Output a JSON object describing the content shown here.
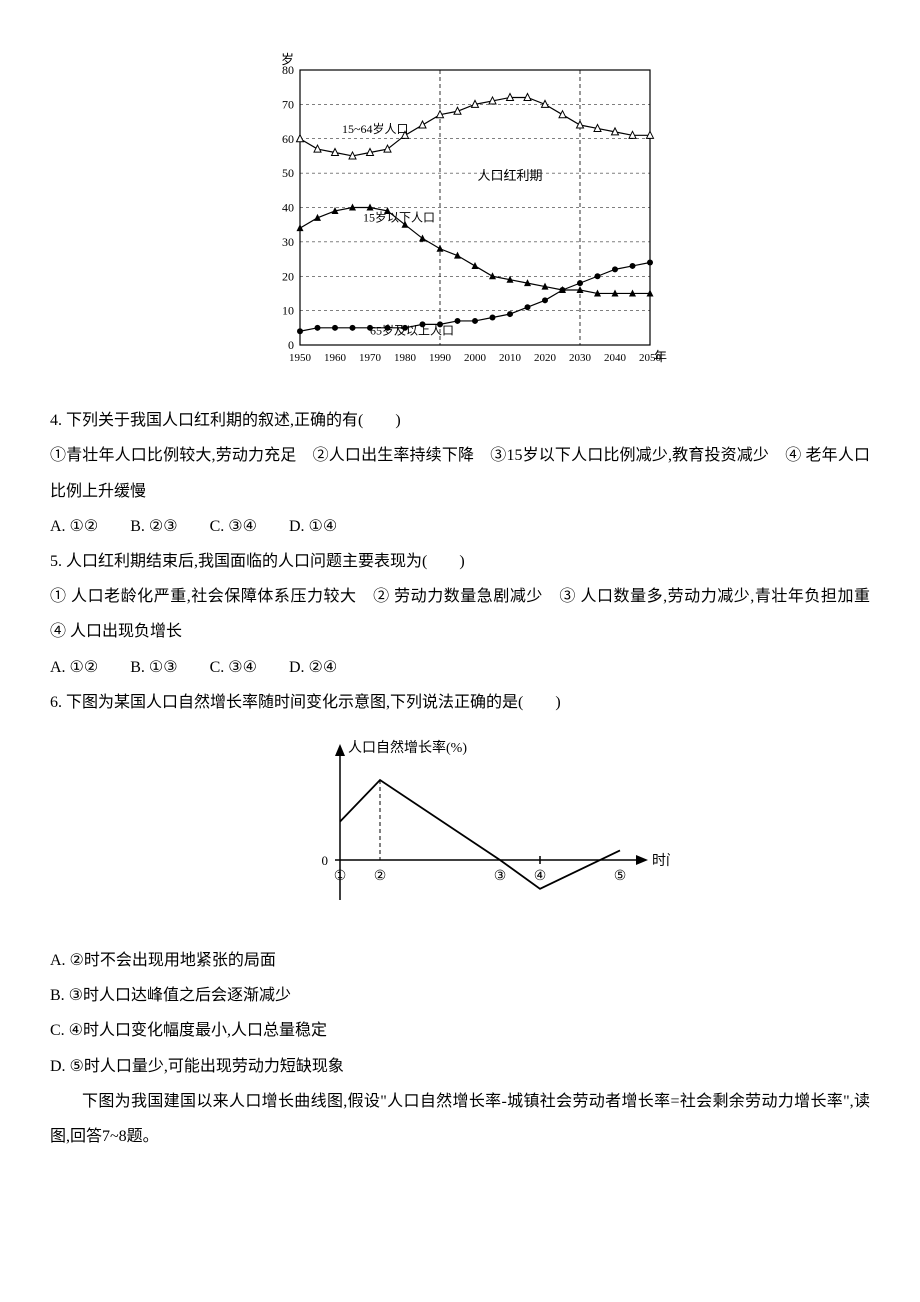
{
  "chart1": {
    "type": "line",
    "x_label_unit": "年",
    "y_label_unit": "岁",
    "x_ticks": [
      "1950",
      "1960",
      "1970",
      "1980",
      "1990",
      "2000",
      "2010",
      "2020",
      "2030",
      "2040",
      "2050"
    ],
    "y_ticks": [
      0,
      10,
      20,
      30,
      40,
      50,
      60,
      70,
      80
    ],
    "xlim": [
      1950,
      2050
    ],
    "ylim": [
      0,
      80
    ],
    "grid_color": "#000000",
    "background": "#ffffff",
    "vlines_x": [
      1990,
      2030
    ],
    "annotation_center": "人口红利期",
    "series": [
      {
        "label": "15~64岁人口",
        "marker": "triangle-open",
        "values": [
          [
            1950,
            60
          ],
          [
            1955,
            57
          ],
          [
            1960,
            56
          ],
          [
            1965,
            55
          ],
          [
            1970,
            56
          ],
          [
            1975,
            57
          ],
          [
            1980,
            61
          ],
          [
            1985,
            64
          ],
          [
            1990,
            67
          ],
          [
            1995,
            68
          ],
          [
            2000,
            70
          ],
          [
            2005,
            71
          ],
          [
            2010,
            72
          ],
          [
            2015,
            72
          ],
          [
            2020,
            70
          ],
          [
            2025,
            67
          ],
          [
            2030,
            64
          ],
          [
            2035,
            63
          ],
          [
            2040,
            62
          ],
          [
            2045,
            61
          ],
          [
            2050,
            61
          ]
        ]
      },
      {
        "label": "15岁以下人口",
        "marker": "triangle-solid",
        "values": [
          [
            1950,
            34
          ],
          [
            1955,
            37
          ],
          [
            1960,
            39
          ],
          [
            1965,
            40
          ],
          [
            1970,
            40
          ],
          [
            1975,
            39
          ],
          [
            1980,
            35
          ],
          [
            1985,
            31
          ],
          [
            1990,
            28
          ],
          [
            1995,
            26
          ],
          [
            2000,
            23
          ],
          [
            2005,
            20
          ],
          [
            2010,
            19
          ],
          [
            2015,
            18
          ],
          [
            2020,
            17
          ],
          [
            2025,
            16
          ],
          [
            2030,
            16
          ],
          [
            2035,
            15
          ],
          [
            2040,
            15
          ],
          [
            2045,
            15
          ],
          [
            2050,
            15
          ]
        ]
      },
      {
        "label": "65岁及以上人口",
        "marker": "circle-solid",
        "values": [
          [
            1950,
            4
          ],
          [
            1955,
            5
          ],
          [
            1960,
            5
          ],
          [
            1965,
            5
          ],
          [
            1970,
            5
          ],
          [
            1975,
            5
          ],
          [
            1980,
            5
          ],
          [
            1985,
            6
          ],
          [
            1990,
            6
          ],
          [
            1995,
            7
          ],
          [
            2000,
            7
          ],
          [
            2005,
            8
          ],
          [
            2010,
            9
          ],
          [
            2015,
            11
          ],
          [
            2020,
            13
          ],
          [
            2025,
            16
          ],
          [
            2030,
            18
          ],
          [
            2035,
            20
          ],
          [
            2040,
            22
          ],
          [
            2045,
            23
          ],
          [
            2050,
            24
          ]
        ]
      }
    ]
  },
  "q4": {
    "stem": "4. 下列关于我国人口红利期的叙述,正确的有(　　)",
    "line2": "①青壮年人口比例较大,劳动力充足　②人口出生率持续下降　③15岁以下人口比例减少,教育投资减少　④ 老年人口比例上升缓慢",
    "opts": "A. ①②　　B. ②③　　C. ③④　　D. ①④"
  },
  "q5": {
    "stem": "5. 人口红利期结束后,我国面临的人口问题主要表现为(　　)",
    "line2": "① 人口老龄化严重,社会保障体系压力较大　② 劳动力数量急剧减少　③ 人口数量多,劳动力减少,青壮年负担加重　④ 人口出现负增长",
    "opts": "A. ①②　　B. ①③　　C. ③④　　D. ②④"
  },
  "q6": {
    "stem": "6. 下图为某国人口自然增长率随时间变化示意图,下列说法正确的是(　　)",
    "optA": "A. ②时不会出现用地紧张的局面",
    "optB": "B. ③时人口达峰值之后会逐渐减少",
    "optC": "C. ④时人口变化幅度最小,人口总量稳定",
    "optD": "D. ⑤时人口量少,可能出现劳动力短缺现象"
  },
  "chart2": {
    "type": "line",
    "y_label": "人口自然增长率(%)",
    "x_label": "时间",
    "x_ticks_circled": [
      "①",
      "②",
      "③",
      "④",
      "⑤"
    ],
    "zero_label": "0",
    "points": [
      [
        0,
        1.2
      ],
      [
        1,
        2.5
      ],
      [
        4,
        0
      ],
      [
        5,
        -0.9
      ],
      [
        7,
        0.3
      ]
    ],
    "vline_x": 1,
    "tick_x": 5
  },
  "intro78": {
    "text": "下图为我国建国以来人口增长曲线图,假设\"人口自然增长率-城镇社会劳动者增长率=社会剩余劳动力增长率\",读图,回答7~8题。"
  }
}
